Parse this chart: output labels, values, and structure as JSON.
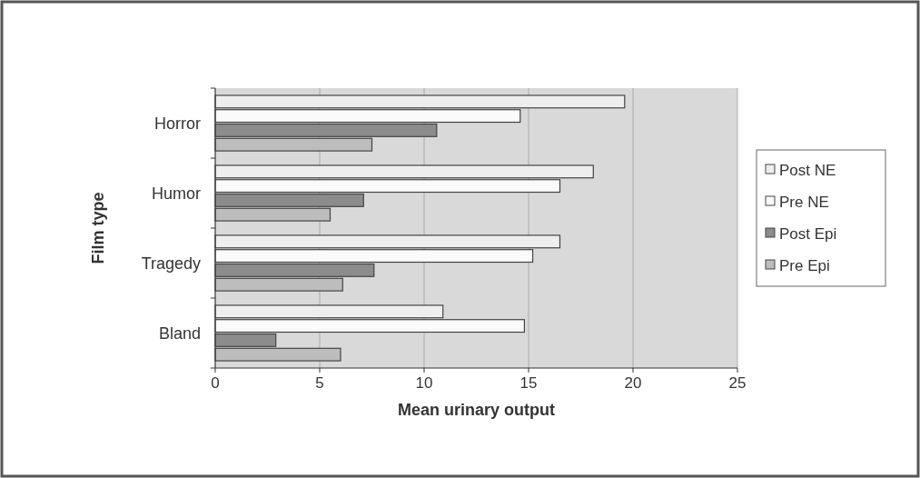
{
  "chart_data": {
    "type": "bar",
    "orientation": "horizontal",
    "xlabel": "Mean urinary output",
    "ylabel": "Film type",
    "categories": [
      "Horror",
      "Humor",
      "Tragedy",
      "Bland"
    ],
    "series": [
      {
        "name": "Post NE",
        "color": "#eeeeee",
        "values": [
          19.6,
          18.1,
          16.5,
          10.9
        ]
      },
      {
        "name": "Pre NE",
        "color": "#fafafa",
        "values": [
          14.6,
          16.5,
          15.2,
          14.8
        ]
      },
      {
        "name": "Post Epi",
        "color": "#8c8c8c",
        "values": [
          10.6,
          7.1,
          7.6,
          2.9
        ]
      },
      {
        "name": "Pre Epi",
        "color": "#bdbdbd",
        "values": [
          7.5,
          5.5,
          6.1,
          6.0
        ]
      }
    ],
    "xlim": [
      0,
      25
    ],
    "xticks": [
      0,
      5,
      10,
      15,
      20,
      25
    ],
    "grid": "x",
    "legend": "right"
  }
}
